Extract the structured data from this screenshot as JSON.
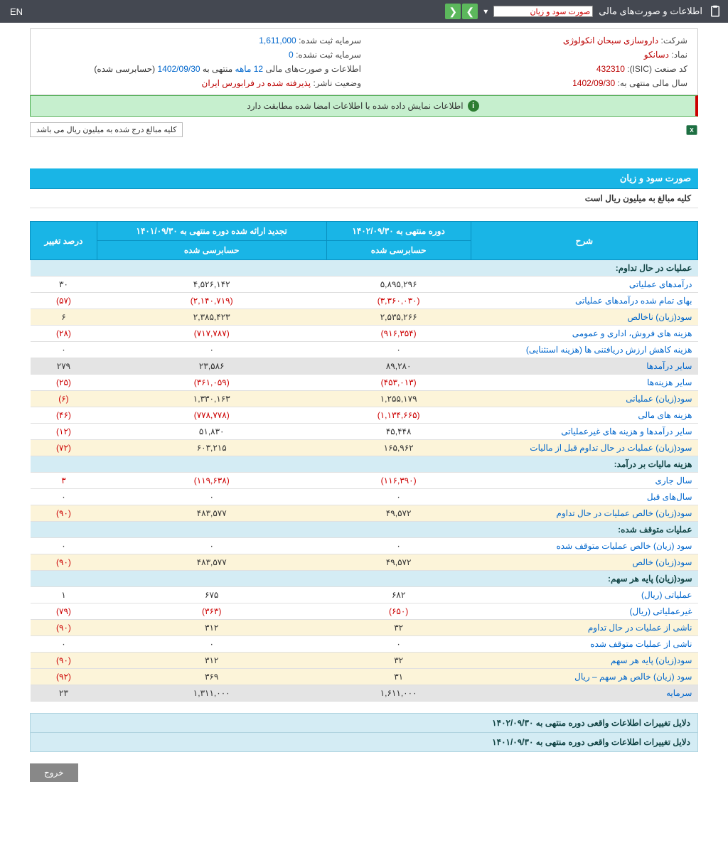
{
  "topbar": {
    "title": "اطلاعات و صورت‌های مالی",
    "select_value": "صورت سود و زیان",
    "lang": "EN"
  },
  "info": {
    "company_label": "شرکت:",
    "company_value": "داروسازی سبحان انکولوژی",
    "capital_reg_label": "سرمایه ثبت شده:",
    "capital_reg_value": "1,611,000",
    "symbol_label": "نماد:",
    "symbol_value": "دسانکو",
    "capital_unreg_label": "سرمایه ثبت نشده:",
    "capital_unreg_value": "0",
    "isic_label": "کد صنعت (ISIC):",
    "isic_value": "432310",
    "report_label": "اطلاعات و صورت‌های مالی",
    "report_period": "12 ماهه",
    "report_mid": "منتهی به",
    "report_date": "1402/09/30",
    "report_suffix": "(حسابرسی شده)",
    "fiscal_label": "سال مالی منتهی به:",
    "fiscal_value": "1402/09/30",
    "status_label": "وضعیت ناشر:",
    "status_value": "پذیرفته شده در فرابورس ایران"
  },
  "green_msg": "اطلاعات نمایش داده شده با اطلاعات امضا شده مطابقت دارد",
  "note": "کلیه مبالغ درج شده به میلیون ریال می باشد",
  "section": {
    "title": "صورت سود و زیان",
    "subtitle": "کلیه مبالغ به میلیون ریال است"
  },
  "headers": {
    "desc": "شرح",
    "period1": "دوره منتهی به ۱۴۰۲/۰۹/۳۰",
    "period2": "تجدید ارائه شده دوره منتهی به ۱۴۰۱/۰۹/۳۰",
    "change": "درصد تغییر",
    "audited": "حسابرسی شده"
  },
  "sections": {
    "s1": "عملیات در حال تداوم:",
    "s2": "هزینه مالیات بر درآمد:",
    "s3": "عملیات متوقف شده:",
    "s4": "سود(زیان) پایه هر سهم:"
  },
  "rows": [
    {
      "d": "درآمدهای عملیاتی",
      "v1": "۵,۸۹۵,۲۹۶",
      "v2": "۴,۵۲۶,۱۴۲",
      "c": "۳۰",
      "alt": false
    },
    {
      "d": "بهای تمام شده درآمدهای عملیاتی",
      "v1": "(۳,۳۶۰,۰۳۰)",
      "v2": "(۲,۱۴۰,۷۱۹)",
      "c": "(۵۷)",
      "alt": false,
      "red": true
    },
    {
      "d": "سود(زیان) ناخالص",
      "v1": "۲,۵۳۵,۲۶۶",
      "v2": "۲,۳۸۵,۴۲۳",
      "c": "۶",
      "alt": true
    },
    {
      "d": "هزینه های فروش، اداری و عمومی",
      "v1": "(۹۱۶,۳۵۴)",
      "v2": "(۷۱۷,۷۸۷)",
      "c": "(۲۸)",
      "alt": false,
      "red": true
    },
    {
      "d": "هزینه کاهش ارزش دریافتنی ها (هزینه استثنایی)",
      "v1": "۰",
      "v2": "۰",
      "c": "۰",
      "alt": false
    },
    {
      "d": "سایر درآمدها",
      "v1": "۸۹,۲۸۰",
      "v2": "۲۳,۵۸۶",
      "c": "۲۷۹",
      "alt": false,
      "gray": true
    },
    {
      "d": "سایر هزینه‌ها",
      "v1": "(۴۵۳,۰۱۳)",
      "v2": "(۳۶۱,۰۵۹)",
      "c": "(۲۵)",
      "alt": false,
      "red": true
    },
    {
      "d": "سود(زیان) عملیاتی",
      "v1": "۱,۲۵۵,۱۷۹",
      "v2": "۱,۳۳۰,۱۶۳",
      "c": "(۶)",
      "alt": true,
      "cred": true
    },
    {
      "d": "هزینه های مالی",
      "v1": "(۱,۱۳۴,۶۶۵)",
      "v2": "(۷۷۸,۷۷۸)",
      "c": "(۴۶)",
      "alt": false,
      "red": true
    },
    {
      "d": "سایر درآمدها و هزینه های غیرعملیاتی",
      "v1": "۴۵,۴۴۸",
      "v2": "۵۱,۸۳۰",
      "c": "(۱۲)",
      "alt": false,
      "cred": true
    },
    {
      "d": "سود(زیان) عملیات در حال تداوم قبل از مالیات",
      "v1": "۱۶۵,۹۶۲",
      "v2": "۶۰۳,۲۱۵",
      "c": "(۷۲)",
      "alt": true,
      "cred": true
    }
  ],
  "rows2": [
    {
      "d": "سال جاری",
      "v1": "(۱۱۶,۳۹۰)",
      "v2": "(۱۱۹,۶۳۸)",
      "c": "۳",
      "alt": false,
      "red": true
    },
    {
      "d": "سال‌های قبل",
      "v1": "۰",
      "v2": "۰",
      "c": "۰",
      "alt": false
    },
    {
      "d": "سود(زیان) خالص عملیات در حال تداوم",
      "v1": "۴۹,۵۷۲",
      "v2": "۴۸۳,۵۷۷",
      "c": "(۹۰)",
      "alt": true,
      "cred": true
    }
  ],
  "rows3": [
    {
      "d": "سود (زیان) خالص عملیات متوقف شده",
      "v1": "۰",
      "v2": "۰",
      "c": "۰",
      "alt": false
    },
    {
      "d": "سود(زیان) خالص",
      "v1": "۴۹,۵۷۲",
      "v2": "۴۸۳,۵۷۷",
      "c": "(۹۰)",
      "alt": true,
      "cred": true
    }
  ],
  "rows4": [
    {
      "d": "عملیاتی (ریال)",
      "v1": "۶۸۲",
      "v2": "۶۷۵",
      "c": "۱",
      "alt": false
    },
    {
      "d": "غیرعملیاتی (ریال)",
      "v1": "(۶۵۰)",
      "v2": "(۳۶۳)",
      "c": "(۷۹)",
      "alt": false,
      "red": true
    },
    {
      "d": "ناشی از عملیات در حال تداوم",
      "v1": "۳۲",
      "v2": "۳۱۲",
      "c": "(۹۰)",
      "alt": true,
      "cred": true
    },
    {
      "d": "ناشی از عملیات متوقف شده",
      "v1": "۰",
      "v2": "۰",
      "c": "۰",
      "alt": false
    },
    {
      "d": "سود(زیان) پایه هر سهم",
      "v1": "۳۲",
      "v2": "۳۱۲",
      "c": "(۹۰)",
      "alt": true,
      "cred": true
    },
    {
      "d": "سود (زیان) خالص هر سهم – ریال",
      "v1": "۳۱",
      "v2": "۳۶۹",
      "c": "(۹۲)",
      "alt": true,
      "cred": true
    },
    {
      "d": "سرمایه",
      "v1": "۱,۶۱۱,۰۰۰",
      "v2": "۱,۳۱۱,۰۰۰",
      "c": "۲۳",
      "alt": false,
      "gray": true
    }
  ],
  "footers": {
    "f1": "دلایل تغییرات اطلاعات واقعی دوره منتهی به ۱۴۰۲/۰۹/۳۰",
    "f2": "دلایل تغییرات اطلاعات واقعی دوره منتهی به ۱۴۰۱/۰۹/۳۰"
  },
  "exit": "خروج"
}
